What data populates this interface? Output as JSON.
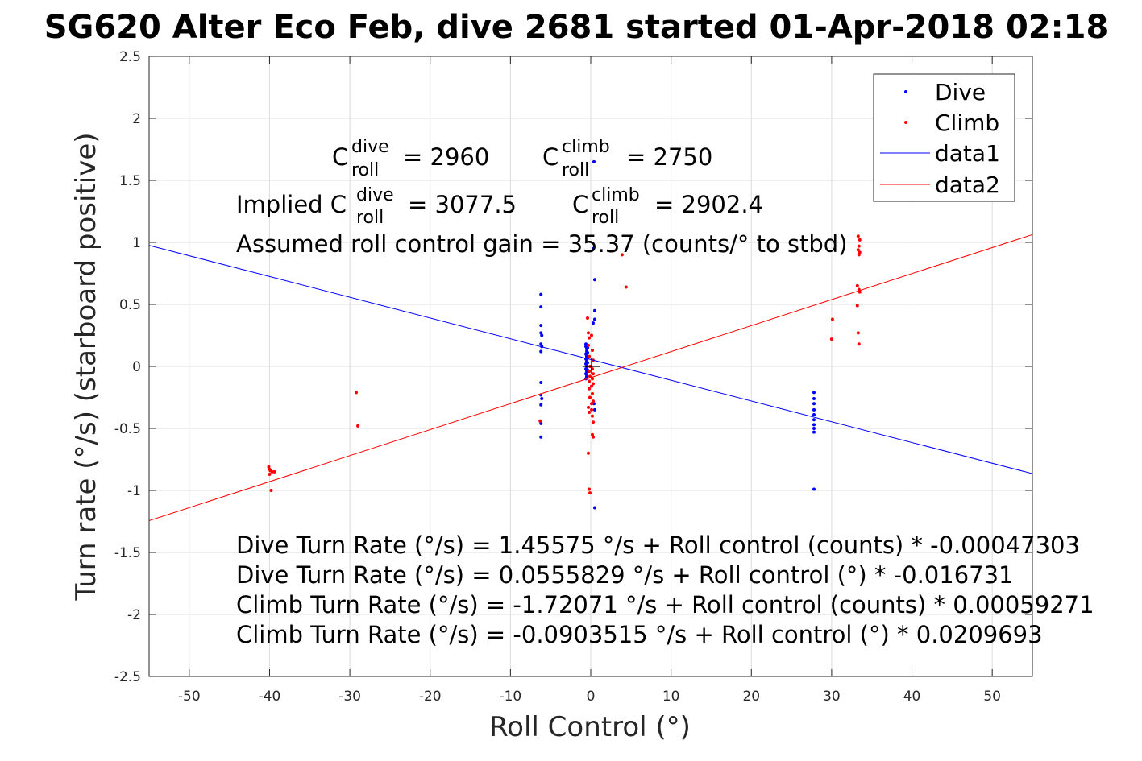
{
  "chart_data": {
    "type": "scatter",
    "title": "SG620 Alter Eco Feb, dive 2681 started 01-Apr-2018 02:18",
    "xlabel": "Roll Control (°)",
    "ylabel": "Turn rate (°/s) (starboard positive)",
    "xlim": [
      -55,
      55
    ],
    "ylim": [
      -2.5,
      2.5
    ],
    "xticks": [
      -50,
      -40,
      -30,
      -20,
      -10,
      0,
      10,
      20,
      30,
      40,
      50
    ],
    "yticks": [
      -2.5,
      -2,
      -1.5,
      -1,
      -0.5,
      0,
      0.5,
      1,
      1.5,
      2,
      2.5
    ],
    "grid": true,
    "legend_placement": "top-right",
    "legend": [
      "Dive",
      "Climb",
      "data1",
      "data2"
    ],
    "colors": {
      "dive": "#0000ff",
      "climb": "#ff0000",
      "data1": "#0000ff",
      "data2": "#ff0000"
    },
    "series": [
      {
        "name": "Dive",
        "kind": "points",
        "color": "#0000ff",
        "points": [
          [
            -6.2,
            0.58
          ],
          [
            -6.2,
            0.48
          ],
          [
            -6.2,
            0.33
          ],
          [
            -6.2,
            0.27
          ],
          [
            -6.1,
            0.25
          ],
          [
            -6.2,
            0.18
          ],
          [
            -6.1,
            0.16
          ],
          [
            -6.2,
            0.12
          ],
          [
            -6.2,
            -0.13
          ],
          [
            -6.2,
            -0.23
          ],
          [
            -6.1,
            -0.26
          ],
          [
            -6.2,
            -0.31
          ],
          [
            -6.2,
            -0.46
          ],
          [
            -6.2,
            -0.57
          ],
          [
            -0.6,
            0.18
          ],
          [
            -0.6,
            0.16
          ],
          [
            -0.5,
            0.14
          ],
          [
            -0.5,
            0.12
          ],
          [
            -0.6,
            0.1
          ],
          [
            -0.5,
            0.08
          ],
          [
            -0.6,
            0.06
          ],
          [
            -0.5,
            0.04
          ],
          [
            -0.6,
            0.02
          ],
          [
            -0.5,
            0.0
          ],
          [
            -0.6,
            -0.02
          ],
          [
            -0.5,
            -0.04
          ],
          [
            -0.6,
            -0.06
          ],
          [
            -0.5,
            -0.08
          ],
          [
            -0.6,
            -0.1
          ],
          [
            -0.4,
            0.15
          ],
          [
            -0.4,
            0.11
          ],
          [
            -0.4,
            0.07
          ],
          [
            -0.4,
            0.03
          ],
          [
            -0.4,
            -0.03
          ],
          [
            0.4,
            1.65
          ],
          [
            0.3,
            0.95
          ],
          [
            0.5,
            0.7
          ],
          [
            0.5,
            0.45
          ],
          [
            0.5,
            0.38
          ],
          [
            0.3,
            0.35
          ],
          [
            0.5,
            -0.35
          ],
          [
            0.4,
            -0.3
          ],
          [
            0.5,
            -1.14
          ],
          [
            27.8,
            -0.21
          ],
          [
            27.8,
            -0.26
          ],
          [
            27.8,
            -0.3
          ],
          [
            27.8,
            -0.35
          ],
          [
            27.8,
            -0.39
          ],
          [
            27.8,
            -0.43
          ],
          [
            27.8,
            -0.47
          ],
          [
            27.8,
            -0.5
          ],
          [
            27.8,
            -0.53
          ],
          [
            27.8,
            -0.99
          ]
        ]
      },
      {
        "name": "Climb",
        "kind": "points",
        "color": "#ff0000",
        "points": [
          [
            -40.1,
            -0.81
          ],
          [
            -40.0,
            -0.83
          ],
          [
            -39.9,
            -0.84
          ],
          [
            -39.7,
            -0.85
          ],
          [
            -39.4,
            -0.85
          ],
          [
            -40.0,
            -0.87
          ],
          [
            -39.8,
            -1.0
          ],
          [
            -29.2,
            -0.21
          ],
          [
            -29.0,
            -0.48
          ],
          [
            -6.3,
            -0.44
          ],
          [
            -0.4,
            0.39
          ],
          [
            -0.3,
            0.27
          ],
          [
            0.1,
            0.25
          ],
          [
            -0.2,
            0.23
          ],
          [
            -0.3,
            0.17
          ],
          [
            0.2,
            0.13
          ],
          [
            -0.2,
            0.08
          ],
          [
            0.3,
            0.05
          ],
          [
            -0.1,
            0.0
          ],
          [
            0.2,
            -0.02
          ],
          [
            -0.2,
            -0.04
          ],
          [
            0.3,
            -0.06
          ],
          [
            -0.1,
            -0.08
          ],
          [
            0.2,
            -0.1
          ],
          [
            -0.2,
            -0.12
          ],
          [
            0.3,
            -0.14
          ],
          [
            0.1,
            -0.16
          ],
          [
            -0.2,
            -0.18
          ],
          [
            0.2,
            -0.22
          ],
          [
            -0.1,
            -0.25
          ],
          [
            0.3,
            -0.28
          ],
          [
            0.1,
            -0.3
          ],
          [
            -0.3,
            -0.33
          ],
          [
            0.1,
            -0.35
          ],
          [
            -0.2,
            -0.37
          ],
          [
            0.2,
            -0.4
          ],
          [
            0.3,
            -0.45
          ],
          [
            0.2,
            -0.55
          ],
          [
            0.3,
            -0.57
          ],
          [
            -0.3,
            -0.7
          ],
          [
            -0.2,
            -0.99
          ],
          [
            -0.1,
            -1.02
          ],
          [
            3.9,
            0.9
          ],
          [
            4.4,
            0.64
          ],
          [
            30.0,
            0.22
          ],
          [
            30.1,
            0.38
          ],
          [
            33.3,
            1.05
          ],
          [
            33.5,
            1.02
          ],
          [
            33.4,
            0.97
          ],
          [
            33.3,
            0.94
          ],
          [
            33.5,
            0.92
          ],
          [
            33.4,
            0.9
          ],
          [
            33.2,
            0.65
          ],
          [
            33.4,
            0.62
          ],
          [
            33.5,
            0.6
          ],
          [
            33.2,
            0.49
          ],
          [
            33.3,
            0.27
          ],
          [
            33.4,
            0.18
          ]
        ]
      },
      {
        "name": "data1",
        "kind": "line",
        "color": "#0000ff",
        "x": [
          -55,
          55
        ],
        "y": [
          0.9758,
          -0.8645
        ]
      },
      {
        "name": "data2",
        "kind": "line",
        "color": "#ff0000",
        "x": [
          -55,
          55
        ],
        "y": [
          -1.2437,
          1.0629
        ]
      }
    ],
    "annotations": {
      "c_roll_line": {
        "dive_base": "C",
        "dive_sup": "dive",
        "dive_sub": "roll",
        "dive_value": "= 2960",
        "climb_base": "C",
        "climb_sup": "climb",
        "climb_sub": "roll",
        "climb_value": "= 2750"
      },
      "implied_line": {
        "prefix": "Implied C",
        "dive_sup": "dive",
        "dive_sub": "roll",
        "dive_value": "= 3077.5",
        "climb_base": "C",
        "climb_sup": "climb",
        "climb_sub": "roll",
        "climb_value": "= 2902.4"
      },
      "gain_line": "Assumed roll control gain = 35.37 (counts/° to stbd)",
      "fit_lines": [
        "Dive Turn Rate (°/s) = 1.45575 °/s + Roll control (counts) * -0.00047303",
        "Dive Turn Rate (°/s) = 0.0555829 °/s + Roll control (°) * -0.016731",
        "Climb Turn Rate (°/s) = -1.72071 °/s + Roll control (counts) * 0.00059271",
        "Climb Turn Rate (°/s) = -0.0903515 °/s + Roll control (°) * 0.0209693"
      ]
    }
  }
}
